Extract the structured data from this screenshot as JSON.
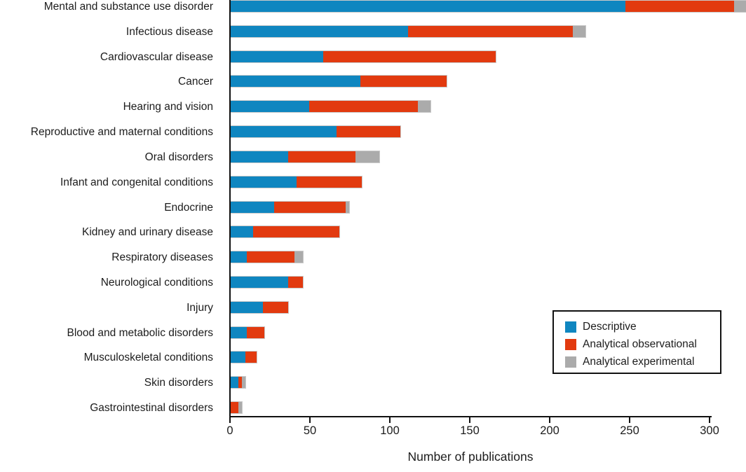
{
  "chart_data": {
    "type": "bar",
    "orientation": "horizontal",
    "stacked": true,
    "title": "",
    "xlabel": "Number of publications",
    "ylabel": "",
    "xlim": [
      0,
      300
    ],
    "xticks": [
      0,
      50,
      100,
      150,
      200,
      250,
      300
    ],
    "grid": false,
    "legend_position": "lower right",
    "categories": [
      "Mental and substance use disorder",
      "Infectious disease",
      "Cardiovascular disease",
      "Cancer",
      "Hearing and vision",
      "Reproductive and maternal conditions",
      "Oral disorders",
      "Infant and congenital conditions",
      "Endocrine",
      "Kidney and urinary disease",
      "Respiratory diseases",
      "Neurological conditions",
      "Injury",
      "Blood and metabolic disorders",
      "Musculoskeletal conditions",
      "Skin disorders",
      "Gastrointestinal disorders"
    ],
    "series": [
      {
        "name": "Descriptive",
        "color": "#0f86c0",
        "values": [
          247,
          111,
          58,
          81,
          49,
          66,
          36,
          41,
          27,
          14,
          10,
          36,
          20,
          10,
          9,
          5,
          0
        ]
      },
      {
        "name": "Analytical observational",
        "color": "#e23a0f",
        "values": [
          68,
          103,
          108,
          54,
          68,
          40,
          42,
          41,
          45,
          54,
          30,
          9,
          16,
          11,
          7,
          2,
          5
        ]
      },
      {
        "name": "Analytical experimental",
        "color": "#ababab",
        "values": [
          8,
          8,
          0,
          0,
          8,
          0,
          15,
          0,
          2,
          0,
          5,
          0,
          0,
          0,
          0,
          2,
          2
        ]
      }
    ]
  },
  "colors": {
    "descriptive": "#0f86c0",
    "analytical_observational": "#e23a0f",
    "analytical_experimental": "#ababab",
    "axis": "#111111",
    "text": "#1c1c1c",
    "bar_outline": "#c9c9c9"
  }
}
